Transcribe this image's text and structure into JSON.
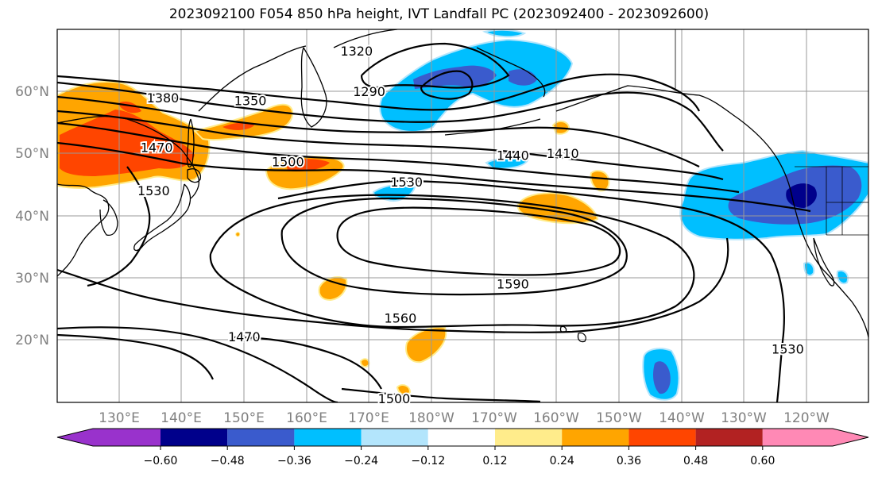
{
  "title": "2023092100 F054 850 hPa height, IVT Landfall PC (2023092400 - 2023092600)",
  "colors": {
    "c_purple": "#9932cc",
    "c_navy": "#00008b",
    "c_royal": "#3a5bcd",
    "c_cyan": "#00bfff",
    "c_lightblue": "#b3e5fc",
    "c_white": "#ffffff",
    "c_yellow": "#ffec8b",
    "c_orange": "#ffa500",
    "c_redorange": "#ff4500",
    "c_firebrick": "#b22222",
    "c_pink": "#ff89b5"
  },
  "map": {
    "lon_ticks": [
      "130°E",
      "140°E",
      "150°E",
      "160°E",
      "170°E",
      "180°W",
      "170°W",
      "160°W",
      "150°W",
      "140°W",
      "130°W",
      "120°W"
    ],
    "lat_ticks": [
      "60°N",
      "50°N",
      "40°N",
      "30°N",
      "20°N"
    ],
    "contour_labels": [
      {
        "text": "1380",
        "lon": 137,
        "lat": 59
      },
      {
        "text": "1350",
        "lon": 151,
        "lat": 58.5
      },
      {
        "text": "1320",
        "lon": 168,
        "lat": 66.5
      },
      {
        "text": "1290",
        "lon": 170,
        "lat": 60
      },
      {
        "text": "1470",
        "lon": 136,
        "lat": 51
      },
      {
        "text": "1530",
        "lon": 135.5,
        "lat": 44
      },
      {
        "text": "1500",
        "lon": 157,
        "lat": 48.7
      },
      {
        "text": "1530",
        "lon": 176,
        "lat": 45.4
      },
      {
        "text": "1440",
        "lon": 193,
        "lat": 49.7
      },
      {
        "text": "1410",
        "lon": 201,
        "lat": 50
      },
      {
        "text": "1590",
        "lon": 193,
        "lat": 29
      },
      {
        "text": "1560",
        "lon": 175,
        "lat": 23.5
      },
      {
        "text": "1470",
        "lon": 150,
        "lat": 20.5
      },
      {
        "text": "1500",
        "lon": 174,
        "lat": 10.5
      },
      {
        "text": "1530",
        "lon": 237,
        "lat": 18.5
      }
    ]
  },
  "colorbar": {
    "labels": [
      "−0.60",
      "−0.48",
      "−0.36",
      "−0.24",
      "−0.12",
      "0.12",
      "0.24",
      "0.36",
      "0.48",
      "0.60"
    ]
  }
}
